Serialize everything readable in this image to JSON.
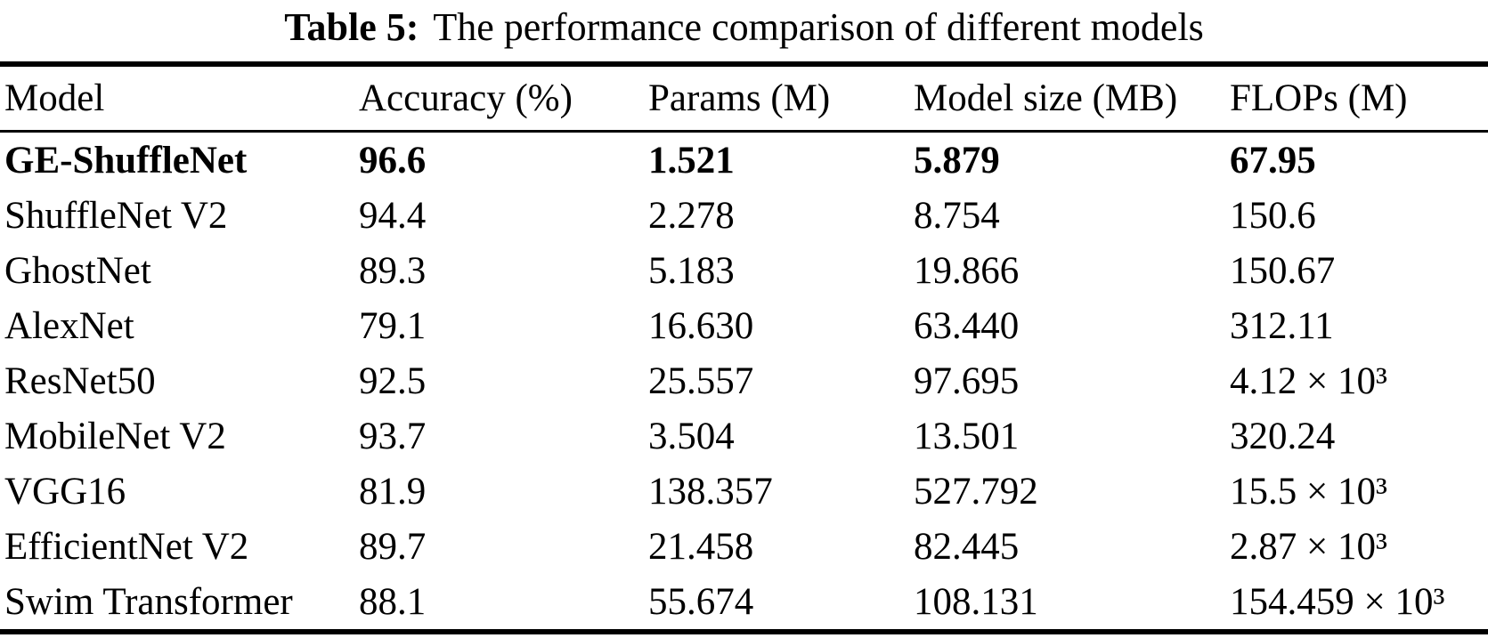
{
  "caption": {
    "label": "Table 5:",
    "text": "The performance comparison of different models"
  },
  "table": {
    "columns": [
      "Model",
      "Accuracy (%)",
      "Params (M)",
      "Model size (MB)",
      "FLOPs (M)"
    ],
    "rows": [
      {
        "model": "GE-ShuffleNet",
        "accuracy": "96.6",
        "params": "1.521",
        "size": "5.879",
        "flops": "67.95",
        "emphasis": true
      },
      {
        "model": "ShuffleNet V2",
        "accuracy": "94.4",
        "params": "2.278",
        "size": "8.754",
        "flops": "150.6",
        "emphasis": false
      },
      {
        "model": "GhostNet",
        "accuracy": "89.3",
        "params": "5.183",
        "size": "19.866",
        "flops": "150.67",
        "emphasis": false
      },
      {
        "model": "AlexNet",
        "accuracy": "79.1",
        "params": "16.630",
        "size": "63.440",
        "flops": "312.11",
        "emphasis": false
      },
      {
        "model": "ResNet50",
        "accuracy": "92.5",
        "params": "25.557",
        "size": "97.695",
        "flops": "4.12 × 10³",
        "emphasis": false
      },
      {
        "model": "MobileNet V2",
        "accuracy": "93.7",
        "params": "3.504",
        "size": "13.501",
        "flops": "320.24",
        "emphasis": false
      },
      {
        "model": "VGG16",
        "accuracy": "81.9",
        "params": "138.357",
        "size": "527.792",
        "flops": "15.5 × 10³",
        "emphasis": false
      },
      {
        "model": "EfficientNet V2",
        "accuracy": "89.7",
        "params": "21.458",
        "size": "82.445",
        "flops": "2.87 × 10³",
        "emphasis": false
      },
      {
        "model": "Swim Transformer",
        "accuracy": "88.1",
        "params": "55.674",
        "size": "108.131",
        "flops": "154.459 × 10³",
        "emphasis": false
      }
    ]
  },
  "colors": {
    "text": "#000000",
    "background": "#ffffff",
    "rule": "#000000"
  }
}
